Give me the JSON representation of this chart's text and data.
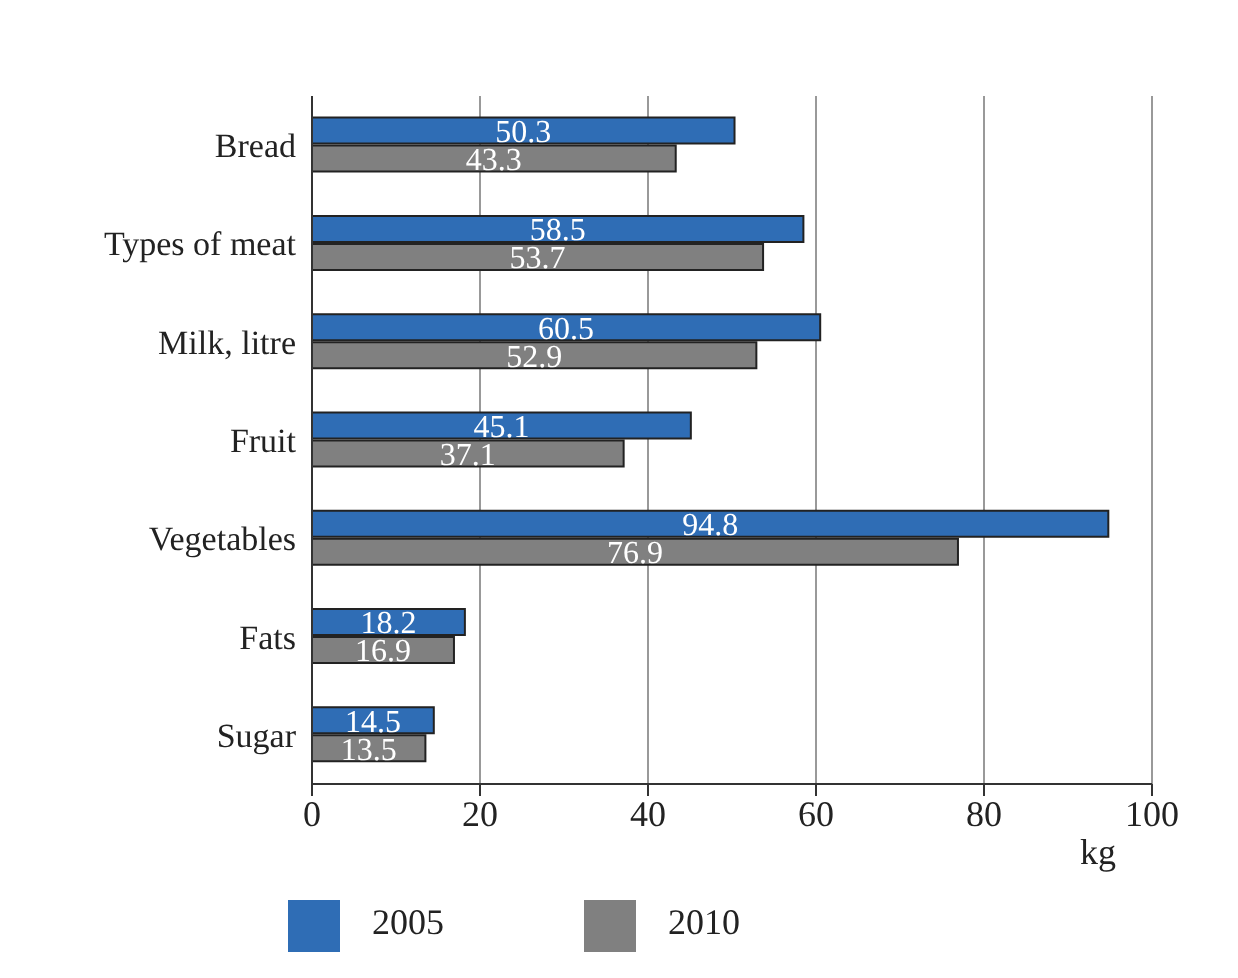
{
  "chart_data": {
    "type": "bar",
    "orientation": "horizontal",
    "categories": [
      "Bread",
      "Types of meat",
      "Milk, litre",
      "Fruit",
      "Vegetables",
      "Fats",
      "Sugar"
    ],
    "series": [
      {
        "name": "2005",
        "color": "#2f6db5",
        "values": [
          50.3,
          58.5,
          60.5,
          45.1,
          94.8,
          18.2,
          14.5
        ]
      },
      {
        "name": "2010",
        "color": "#808080",
        "values": [
          43.3,
          53.7,
          52.9,
          37.1,
          76.9,
          16.9,
          13.5
        ]
      }
    ],
    "xlabel": "kg",
    "xlim": [
      0,
      100
    ],
    "xticks": [
      0,
      20,
      40,
      60,
      80,
      100
    ],
    "grid": "x",
    "legend": "bottom",
    "data_labels": true
  }
}
